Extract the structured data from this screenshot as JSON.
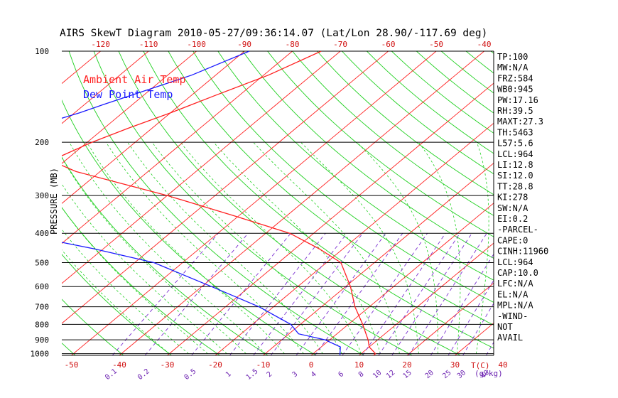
{
  "chart_data": {
    "type": "line",
    "title": "AIRS SkewT Diagram 2010-05-27/09:36:14.07 (Lat/Lon 28.90/-117.69 deg)",
    "ylabel": "PRESSURE (MB)",
    "pressure_ticks": [
      100,
      200,
      300,
      400,
      500,
      600,
      700,
      800,
      900,
      1000
    ],
    "top_temp_ticks": [
      -120,
      -110,
      -100,
      -90,
      -80,
      -70,
      -60,
      -50,
      -40
    ],
    "bottom_temp_ticks": [
      -50,
      -40,
      -30,
      -20,
      -10,
      0,
      10,
      20,
      30,
      40
    ],
    "bottom_unit_label": "T(C)",
    "mixing_ratio_ticks": [
      "0.1",
      "0.2",
      "0.5",
      "1",
      "1.5",
      "2",
      "3",
      "4",
      "6",
      "8",
      "10",
      "12",
      "15",
      "20",
      "25",
      "30",
      "40"
    ],
    "mixing_ratio_unit_label": "(g/kg)",
    "legend": [
      {
        "label": "Ambient Air Temp",
        "color": "#ff2020"
      },
      {
        "label": "Dew Point Temp",
        "color": "#1a1aff"
      }
    ],
    "series": [
      {
        "name": "Ambient Air Temp",
        "color": "#ff2020",
        "points": [
          {
            "p": 100,
            "t": -74
          },
          {
            "p": 120,
            "t": -79
          },
          {
            "p": 140,
            "t": -85
          },
          {
            "p": 160,
            "t": -90
          },
          {
            "p": 180,
            "t": -95
          },
          {
            "p": 200,
            "t": -99
          },
          {
            "p": 230,
            "t": -103
          },
          {
            "p": 250,
            "t": -95
          },
          {
            "p": 300,
            "t": -70
          },
          {
            "p": 350,
            "t": -51
          },
          {
            "p": 400,
            "t": -35
          },
          {
            "p": 450,
            "t": -25
          },
          {
            "p": 500,
            "t": -17
          },
          {
            "p": 600,
            "t": -9
          },
          {
            "p": 700,
            "t": -3
          },
          {
            "p": 800,
            "t": 3
          },
          {
            "p": 900,
            "t": 8
          },
          {
            "p": 950,
            "t": 10
          },
          {
            "p": 1000,
            "t": 13
          },
          {
            "p": 1013,
            "t": 13
          }
        ]
      },
      {
        "name": "Dew Point Temp",
        "color": "#1a1aff",
        "points": [
          {
            "p": 100,
            "t": -89
          },
          {
            "p": 120,
            "t": -95
          },
          {
            "p": 150,
            "t": -106
          },
          {
            "p": 160,
            "t": -109
          },
          {
            "p": 200,
            "t": -122
          },
          {
            "p": 240,
            "t": -125
          },
          {
            "p": 300,
            "t": -120
          },
          {
            "p": 400,
            "t": -92
          },
          {
            "p": 450,
            "t": -72
          },
          {
            "p": 500,
            "t": -56
          },
          {
            "p": 600,
            "t": -38
          },
          {
            "p": 700,
            "t": -23
          },
          {
            "p": 800,
            "t": -12
          },
          {
            "p": 860,
            "t": -8
          },
          {
            "p": 900,
            "t": -1
          },
          {
            "p": 950,
            "t": 4
          },
          {
            "p": 1013,
            "t": 6
          }
        ]
      }
    ]
  },
  "indices": [
    "TP:100",
    "MW:N/A",
    "FRZ:584",
    "WB0:945",
    "PW:17.16",
    "RH:39.5",
    "MAXT:27.3",
    "TH:5463",
    "L57:5.6",
    "LCL:964",
    "LI:12.8",
    "SI:12.0",
    "TT:28.8",
    "KI:278",
    "SW:N/A",
    "EI:0.2",
    "-PARCEL-",
    "CAPE:0",
    "CINH:11960",
    "LCL:964",
    "CAP:10.0",
    "LFC:N/A",
    "EL:N/A",
    "MPL:N/A",
    "-WIND-",
    "NOT",
    "AVAIL"
  ],
  "colors": {
    "isotherm": "#ff2020",
    "dry_adiabat": "#1fd01f",
    "moist_adiabat": "#1fd01f",
    "mixing_ratio": "#7a2fd0",
    "isobar": "#000000",
    "temp_label": "#d01010",
    "mixing_label": "#6a1fb0"
  }
}
